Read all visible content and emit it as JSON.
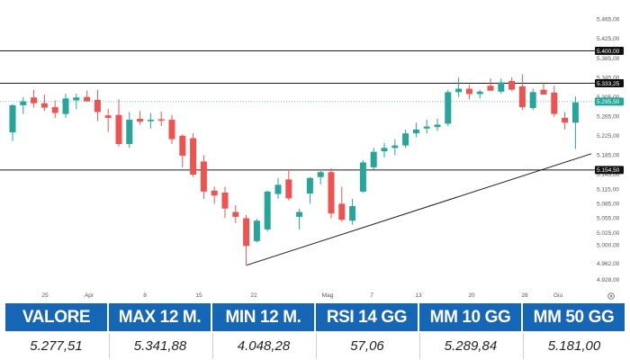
{
  "chart_data": {
    "type": "candlestick",
    "x_tick_labels": [
      "25",
      "Apr",
      "8",
      "15",
      "22",
      "Mag",
      "7",
      "13",
      "20",
      "28",
      "Giu"
    ],
    "y_tick_labels": [
      "5.465,00",
      "5.425,00",
      "5.385,00",
      "5.345,00",
      "5.305,00",
      "5.265,00",
      "5.225,00",
      "5.185,00",
      "5.145,00",
      "5.115,00",
      "5.085,00",
      "5.055,00",
      "5.025,00",
      "5.000,00",
      "4.962,00",
      "4.928,00"
    ],
    "y_ticks": [
      5465,
      5425,
      5385,
      5345,
      5305,
      5265,
      5225,
      5185,
      5145,
      5115,
      5085,
      5055,
      5025,
      5000,
      4962,
      4928
    ],
    "ylim": [
      4915,
      5490
    ],
    "candles": [
      {
        "o": 5232,
        "h": 5290,
        "l": 5214,
        "c": 5288
      },
      {
        "o": 5288,
        "h": 5305,
        "l": 5270,
        "c": 5296
      },
      {
        "o": 5304,
        "h": 5320,
        "l": 5283,
        "c": 5292
      },
      {
        "o": 5292,
        "h": 5310,
        "l": 5276,
        "c": 5283
      },
      {
        "o": 5284,
        "h": 5298,
        "l": 5262,
        "c": 5272
      },
      {
        "o": 5270,
        "h": 5312,
        "l": 5262,
        "c": 5302
      },
      {
        "o": 5298,
        "h": 5312,
        "l": 5280,
        "c": 5304
      },
      {
        "o": 5305,
        "h": 5318,
        "l": 5296,
        "c": 5296
      },
      {
        "o": 5299,
        "h": 5320,
        "l": 5255,
        "c": 5274
      },
      {
        "o": 5267,
        "h": 5280,
        "l": 5233,
        "c": 5262
      },
      {
        "o": 5268,
        "h": 5300,
        "l": 5203,
        "c": 5208
      },
      {
        "o": 5208,
        "h": 5274,
        "l": 5200,
        "c": 5258
      },
      {
        "o": 5260,
        "h": 5276,
        "l": 5248,
        "c": 5254
      },
      {
        "o": 5255,
        "h": 5272,
        "l": 5240,
        "c": 5258
      },
      {
        "o": 5259,
        "h": 5275,
        "l": 5245,
        "c": 5256
      },
      {
        "o": 5258,
        "h": 5268,
        "l": 5208,
        "c": 5218
      },
      {
        "o": 5225,
        "h": 5228,
        "l": 5160,
        "c": 5184
      },
      {
        "o": 5220,
        "h": 5230,
        "l": 5140,
        "c": 5145
      },
      {
        "o": 5172,
        "h": 5185,
        "l": 5095,
        "c": 5110
      },
      {
        "o": 5112,
        "h": 5120,
        "l": 5085,
        "c": 5102
      },
      {
        "o": 5108,
        "h": 5120,
        "l": 5055,
        "c": 5075
      },
      {
        "o": 5068,
        "h": 5082,
        "l": 5045,
        "c": 5058
      },
      {
        "o": 5055,
        "h": 5062,
        "l": 4958,
        "c": 4998
      },
      {
        "o": 5008,
        "h": 5054,
        "l": 5005,
        "c": 5050
      },
      {
        "o": 5032,
        "h": 5112,
        "l": 5028,
        "c": 5110
      },
      {
        "o": 5105,
        "h": 5138,
        "l": 5095,
        "c": 5124
      },
      {
        "o": 5135,
        "h": 5155,
        "l": 5092,
        "c": 5096
      },
      {
        "o": 5058,
        "h": 5075,
        "l": 5032,
        "c": 5068
      },
      {
        "o": 5106,
        "h": 5140,
        "l": 5085,
        "c": 5138
      },
      {
        "o": 5140,
        "h": 5155,
        "l": 5125,
        "c": 5150
      },
      {
        "o": 5150,
        "h": 5158,
        "l": 5055,
        "c": 5065
      },
      {
        "o": 5085,
        "h": 5120,
        "l": 5048,
        "c": 5052
      },
      {
        "o": 5050,
        "h": 5095,
        "l": 5042,
        "c": 5080
      },
      {
        "o": 5110,
        "h": 5175,
        "l": 5108,
        "c": 5170
      },
      {
        "o": 5160,
        "h": 5200,
        "l": 5155,
        "c": 5192
      },
      {
        "o": 5193,
        "h": 5210,
        "l": 5180,
        "c": 5200
      },
      {
        "o": 5200,
        "h": 5218,
        "l": 5185,
        "c": 5205
      },
      {
        "o": 5205,
        "h": 5238,
        "l": 5200,
        "c": 5230
      },
      {
        "o": 5230,
        "h": 5252,
        "l": 5222,
        "c": 5238
      },
      {
        "o": 5240,
        "h": 5258,
        "l": 5230,
        "c": 5244
      },
      {
        "o": 5243,
        "h": 5260,
        "l": 5235,
        "c": 5248
      },
      {
        "o": 5250,
        "h": 5320,
        "l": 5245,
        "c": 5315
      },
      {
        "o": 5315,
        "h": 5345,
        "l": 5305,
        "c": 5322
      },
      {
        "o": 5322,
        "h": 5330,
        "l": 5300,
        "c": 5311
      },
      {
        "o": 5311,
        "h": 5320,
        "l": 5302,
        "c": 5316
      },
      {
        "o": 5328,
        "h": 5343,
        "l": 5318,
        "c": 5318
      },
      {
        "o": 5316,
        "h": 5343,
        "l": 5312,
        "c": 5335
      },
      {
        "o": 5338,
        "h": 5345,
        "l": 5318,
        "c": 5320
      },
      {
        "o": 5327,
        "h": 5352,
        "l": 5278,
        "c": 5284
      },
      {
        "o": 5282,
        "h": 5322,
        "l": 5278,
        "c": 5315
      },
      {
        "o": 5320,
        "h": 5335,
        "l": 5310,
        "c": 5310
      },
      {
        "o": 5314,
        "h": 5328,
        "l": 5264,
        "c": 5270
      },
      {
        "o": 5262,
        "h": 5274,
        "l": 5238,
        "c": 5252
      },
      {
        "o": 5252,
        "h": 5306,
        "l": 5198,
        "c": 5294
      }
    ],
    "horizontal_levels": [
      {
        "value": 5400,
        "label": "5.400,00"
      },
      {
        "value": 5333.25,
        "label": "5.333,25"
      },
      {
        "value": 5154.5,
        "label": "5.154,50"
      }
    ],
    "last_price": {
      "value": 5295.5,
      "label": "5.295,50"
    },
    "trendline": {
      "from_index": 22,
      "from_price": 4958,
      "to_index": 54.5,
      "to_price": 5188
    },
    "grid": false,
    "colors": {
      "up": "#26a69a",
      "down": "#ef5350",
      "level": "#1a1a1a",
      "last": "#26a69a"
    }
  },
  "stats": [
    {
      "label": "VALORE",
      "value": "5.277,51"
    },
    {
      "label": "MAX 12 M.",
      "value": "5.341,88"
    },
    {
      "label": "MIN 12 M.",
      "value": "4.048,28"
    },
    {
      "label": "RSI 14 GG",
      "value": "57,06"
    },
    {
      "label": "MM 10 GG",
      "value": "5.289,84"
    },
    {
      "label": "MM 50 GG",
      "value": "5.181,00"
    }
  ],
  "colors": {
    "stats_header": "#1566b5"
  },
  "icons": {
    "settings": "gear-icon"
  }
}
